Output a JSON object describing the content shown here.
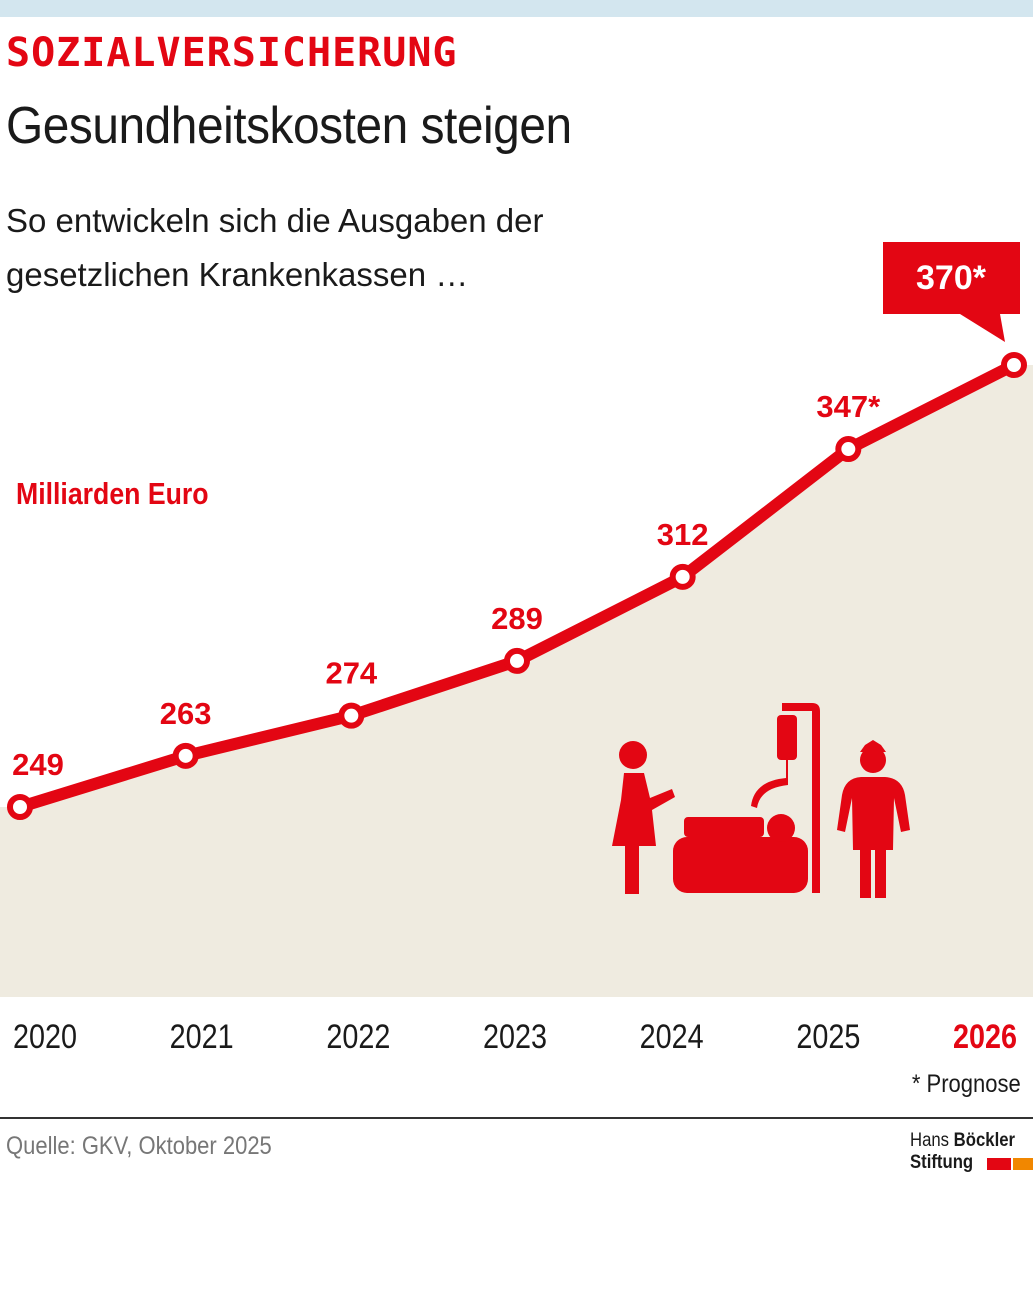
{
  "header": {
    "kicker": "SOZIALVERSICHERUNG",
    "title": "Gesundheitskosten steigen",
    "subtitle": "So entwickeln sich die Ausgaben der gesetzlichen Krankenkassen …"
  },
  "chart_data": {
    "type": "area",
    "ylabel": "Milliarden Euro",
    "categories": [
      "2020",
      "2021",
      "2022",
      "2023",
      "2024",
      "2025",
      "2026"
    ],
    "series": [
      {
        "values": [
          249,
          263,
          274,
          289,
          312,
          347,
          370
        ]
      }
    ],
    "data_labels": [
      "249",
      "263",
      "274",
      "289",
      "312",
      "347*",
      "370*"
    ],
    "highlight_category": "2026",
    "grid": false,
    "colors": {
      "line": "#e30613",
      "area": "#efebe0",
      "highlight_label": "#e30613"
    }
  },
  "footnote": "* Prognose",
  "source": "Quelle: GKV, Oktober 2025",
  "logo": {
    "line1_light": "Hans",
    "line1_bold": "Böckler",
    "line2": "Stiftung"
  },
  "illustration": {
    "icon": "hospital-bed-visitor-nurse-icon",
    "color": "#e30613"
  }
}
